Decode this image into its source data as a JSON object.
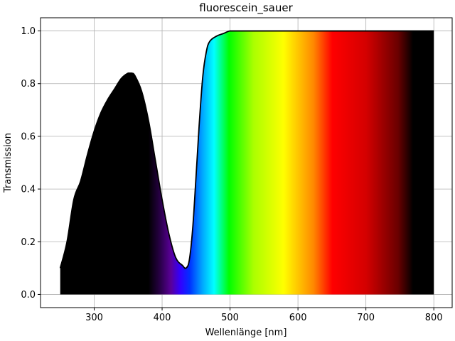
{
  "chart_data": {
    "type": "area",
    "title": "fluorescein_sauer",
    "xlabel": "Wellenlänge [nm]",
    "ylabel": "Transmission",
    "xlim": [
      221,
      827
    ],
    "ylim": [
      -0.05,
      1.05
    ],
    "xticks": [
      "300",
      "400",
      "500",
      "600",
      "700",
      "800"
    ],
    "yticks": [
      "0.0",
      "0.2",
      "0.4",
      "0.6",
      "0.8",
      "1.0"
    ],
    "grid": true,
    "fill": "visible-spectrum colors",
    "series": [
      {
        "x": [
          250,
          260,
          270,
          280,
          290,
          300,
          310,
          320,
          330,
          340,
          350,
          355,
          360,
          370,
          380,
          390,
          400,
          410,
          420,
          430,
          435,
          440,
          445,
          450,
          455,
          460,
          465,
          470,
          480,
          490,
          500,
          510,
          520,
          600,
          700,
          800
        ],
        "y": [
          0.1,
          0.2,
          0.36,
          0.43,
          0.53,
          0.62,
          0.69,
          0.74,
          0.78,
          0.82,
          0.84,
          0.84,
          0.83,
          0.77,
          0.66,
          0.51,
          0.36,
          0.23,
          0.14,
          0.11,
          0.1,
          0.13,
          0.25,
          0.45,
          0.66,
          0.83,
          0.92,
          0.96,
          0.98,
          0.99,
          1.0,
          1.0,
          1.0,
          1.0,
          1.0,
          1.0
        ]
      }
    ]
  }
}
